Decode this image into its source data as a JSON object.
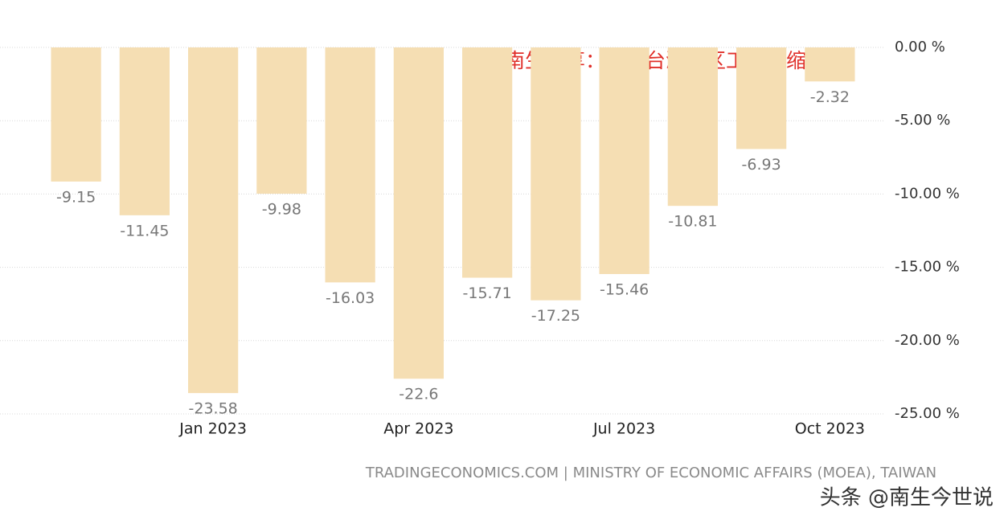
{
  "chart_data": {
    "type": "bar",
    "annotation": "南生分享：我国台湾地区工业在缩减",
    "source": "TRADINGECONOMICS.COM | MINISTRY OF ECONOMIC AFFAIRS (MOEA), TAIWAN",
    "watermark": "头条 @南生今世说",
    "categories": [
      null,
      null,
      "Jan 2023",
      null,
      null,
      "Apr 2023",
      null,
      null,
      "Jul 2023",
      null,
      null,
      "Oct 2023"
    ],
    "values": [
      -9.15,
      -11.45,
      -23.58,
      -9.98,
      -16.03,
      -22.6,
      -15.71,
      -17.25,
      -15.46,
      -10.81,
      -6.93,
      -2.32
    ],
    "color": "#f5deb3",
    "ylim": [
      -25,
      0
    ],
    "yticks": [
      {
        "value": 0,
        "label": "0.00 %"
      },
      {
        "value": -5,
        "label": "-5.00 %"
      },
      {
        "value": -10,
        "label": "-10.00 %"
      },
      {
        "value": -15,
        "label": "-15.00 %"
      },
      {
        "value": -20,
        "label": "-20.00 %"
      },
      {
        "value": -25,
        "label": "-25.00 %"
      }
    ],
    "grid": true
  }
}
